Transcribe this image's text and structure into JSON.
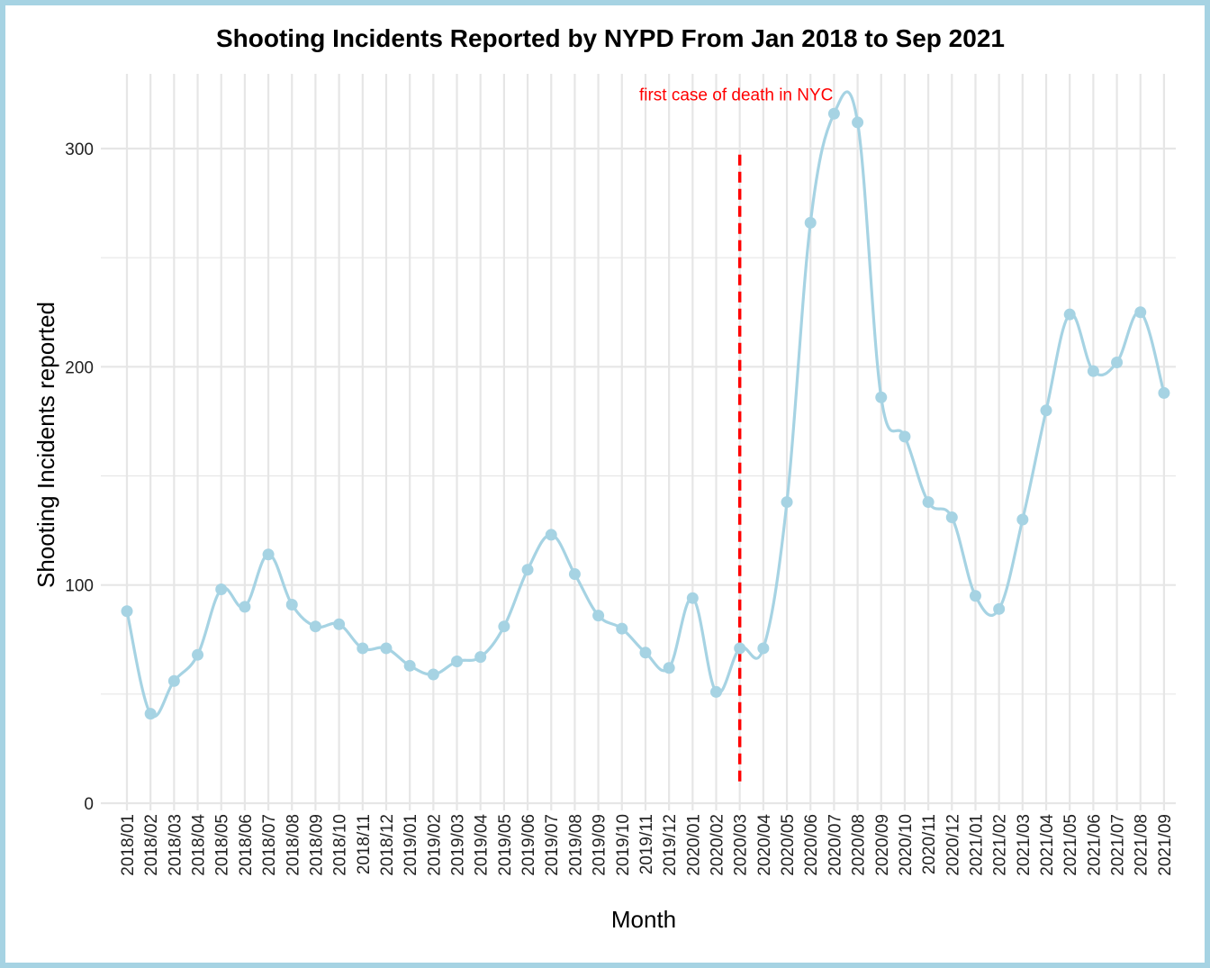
{
  "chart_data": {
    "type": "line",
    "title": "Shooting Incidents Reported by NYPD From Jan 2018 to Sep 2021",
    "xlabel": "Month",
    "ylabel": "Shooting Incidents reported",
    "x": [
      "2018/01",
      "2018/02",
      "2018/03",
      "2018/04",
      "2018/05",
      "2018/06",
      "2018/07",
      "2018/08",
      "2018/09",
      "2018/10",
      "2018/11",
      "2018/12",
      "2019/01",
      "2019/02",
      "2019/03",
      "2019/04",
      "2019/05",
      "2019/06",
      "2019/07",
      "2019/08",
      "2019/09",
      "2019/10",
      "2019/11",
      "2019/12",
      "2020/01",
      "2020/02",
      "2020/03",
      "2020/04",
      "2020/05",
      "2020/06",
      "2020/07",
      "2020/08",
      "2020/09",
      "2020/10",
      "2020/11",
      "2020/12",
      "2021/01",
      "2021/02",
      "2021/03",
      "2021/04",
      "2021/05",
      "2021/06",
      "2021/07",
      "2021/08",
      "2021/09"
    ],
    "series": [
      {
        "values": [
          88,
          41,
          56,
          68,
          98,
          90,
          114,
          91,
          81,
          82,
          71,
          71,
          63,
          59,
          65,
          67,
          81,
          107,
          123,
          105,
          86,
          80,
          69,
          62,
          94,
          51,
          71,
          71,
          138,
          266,
          316,
          312,
          186,
          168,
          138,
          131,
          95,
          89,
          130,
          180,
          224,
          198,
          202,
          225,
          188
        ]
      }
    ],
    "ylim": [
      0,
      330
    ],
    "yticks": [
      0,
      100,
      200,
      300
    ],
    "grid": true,
    "legend": "none",
    "colors": {
      "line": "#a6d3e3",
      "marker": "#a6d3e3",
      "annotation": "#ff0000",
      "grid": "#e6e6e6",
      "border": "#a6d3e3"
    },
    "annotation": {
      "text": "first case of death in NYC",
      "x": "2020/03",
      "y": 325,
      "line_y_range": [
        10,
        298
      ],
      "line_style": "dashed"
    }
  }
}
